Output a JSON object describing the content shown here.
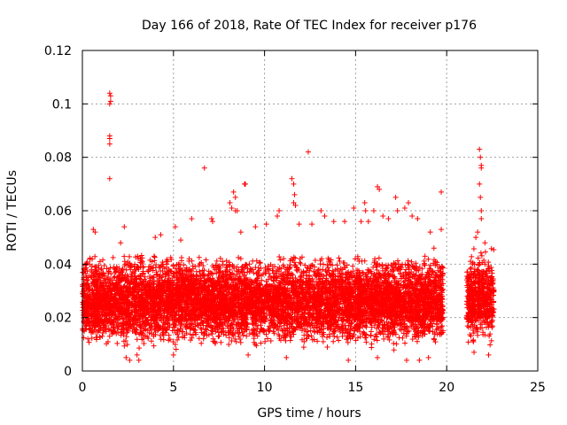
{
  "chart_data": {
    "type": "scatter",
    "title": "Day 166 of 2018, Rate Of TEC Index for receiver p176",
    "xlabel": "GPS time / hours",
    "ylabel": "ROTI / TECUs",
    "xlim": [
      0,
      25
    ],
    "ylim": [
      0,
      0.12
    ],
    "grid": true,
    "marker": "+",
    "color": "#ff0000",
    "x_ticks": [
      0,
      5,
      10,
      15,
      20,
      25
    ],
    "x_tick_labels": [
      "0",
      "5",
      "10",
      "15",
      "20",
      "25"
    ],
    "y_ticks": [
      0,
      0.02,
      0.04,
      0.06,
      0.08,
      0.1,
      0.12
    ],
    "y_tick_labels": [
      "0",
      "0.02",
      "0.04",
      "0.06",
      "0.08",
      "0.1",
      "0.12"
    ],
    "dense_segments": [
      {
        "x_start": 0.0,
        "x_end": 19.8,
        "y_low": 0.007,
        "y_high": 0.045,
        "median": 0.022
      },
      {
        "x_start": 21.1,
        "x_end": 22.6,
        "y_low": 0.008,
        "y_high": 0.046,
        "median": 0.025
      }
    ],
    "series": [
      {
        "name": "ROTI",
        "points": [
          [
            1.5,
            0.104
          ],
          [
            1.55,
            0.103
          ],
          [
            1.55,
            0.101
          ],
          [
            1.5,
            0.1
          ],
          [
            1.5,
            0.088
          ],
          [
            1.5,
            0.087
          ],
          [
            1.5,
            0.085
          ],
          [
            1.5,
            0.072
          ],
          [
            0.6,
            0.053
          ],
          [
            0.7,
            0.052
          ],
          [
            2.3,
            0.054
          ],
          [
            2.1,
            0.048
          ],
          [
            4.0,
            0.05
          ],
          [
            4.3,
            0.051
          ],
          [
            5.1,
            0.054
          ],
          [
            5.4,
            0.049
          ],
          [
            6.0,
            0.057
          ],
          [
            6.7,
            0.076
          ],
          [
            7.1,
            0.057
          ],
          [
            7.15,
            0.056
          ],
          [
            8.1,
            0.063
          ],
          [
            8.2,
            0.061
          ],
          [
            8.3,
            0.067
          ],
          [
            8.4,
            0.06
          ],
          [
            8.5,
            0.06
          ],
          [
            8.4,
            0.065
          ],
          [
            8.7,
            0.052
          ],
          [
            8.9,
            0.07
          ],
          [
            8.95,
            0.07
          ],
          [
            9.5,
            0.054
          ],
          [
            10.1,
            0.055
          ],
          [
            10.7,
            0.058
          ],
          [
            10.8,
            0.06
          ],
          [
            11.5,
            0.072
          ],
          [
            11.6,
            0.07
          ],
          [
            11.65,
            0.066
          ],
          [
            11.7,
            0.062
          ],
          [
            11.6,
            0.063
          ],
          [
            11.9,
            0.055
          ],
          [
            12.4,
            0.082
          ],
          [
            12.6,
            0.055
          ],
          [
            13.1,
            0.06
          ],
          [
            13.3,
            0.058
          ],
          [
            13.8,
            0.056
          ],
          [
            14.4,
            0.056
          ],
          [
            14.9,
            0.061
          ],
          [
            15.3,
            0.056
          ],
          [
            15.5,
            0.063
          ],
          [
            15.55,
            0.06
          ],
          [
            15.7,
            0.056
          ],
          [
            16.0,
            0.06
          ],
          [
            16.2,
            0.069
          ],
          [
            16.3,
            0.068
          ],
          [
            16.5,
            0.058
          ],
          [
            16.8,
            0.057
          ],
          [
            17.2,
            0.065
          ],
          [
            17.3,
            0.06
          ],
          [
            17.7,
            0.061
          ],
          [
            17.9,
            0.063
          ],
          [
            18.1,
            0.058
          ],
          [
            18.4,
            0.057
          ],
          [
            19.1,
            0.052
          ],
          [
            19.3,
            0.046
          ],
          [
            19.7,
            0.067
          ],
          [
            19.7,
            0.053
          ],
          [
            21.8,
            0.083
          ],
          [
            21.85,
            0.08
          ],
          [
            21.9,
            0.077
          ],
          [
            21.9,
            0.076
          ],
          [
            21.8,
            0.07
          ],
          [
            21.85,
            0.065
          ],
          [
            21.9,
            0.06
          ],
          [
            21.9,
            0.057
          ],
          [
            21.7,
            0.052
          ],
          [
            21.6,
            0.05
          ],
          [
            22.1,
            0.048
          ],
          [
            0.1,
            0.038
          ],
          [
            0.2,
            0.04
          ],
          [
            0.3,
            0.012
          ],
          [
            0.5,
            0.015
          ],
          [
            2.4,
            0.005
          ],
          [
            2.6,
            0.004
          ],
          [
            3.0,
            0.006
          ],
          [
            3.1,
            0.004
          ],
          [
            5.0,
            0.006
          ],
          [
            9.1,
            0.006
          ],
          [
            11.2,
            0.005
          ],
          [
            14.6,
            0.004
          ],
          [
            16.2,
            0.005
          ],
          [
            17.8,
            0.004
          ],
          [
            18.5,
            0.004
          ],
          [
            19.0,
            0.005
          ],
          [
            21.5,
            0.007
          ],
          [
            22.3,
            0.006
          ]
        ]
      }
    ]
  }
}
